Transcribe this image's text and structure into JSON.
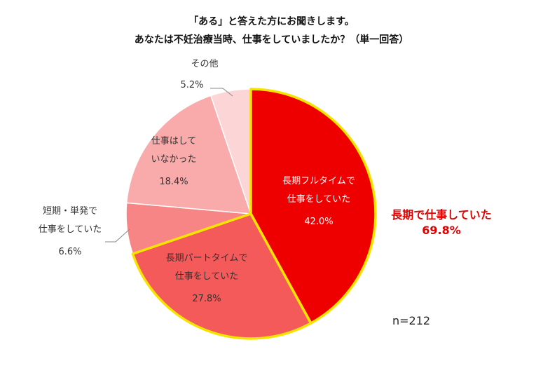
{
  "title_lines": [
    "「ある」と答えた方にお聞きします。",
    "あなたは不妊治療当時、仕事をしていましたか？（単一回答）"
  ],
  "chart_data": {
    "type": "pie",
    "start_angle_deg": 0,
    "direction": "clockwise",
    "slices": [
      {
        "label_lines": [
          "長期フルタイムで",
          "仕事をしていた"
        ],
        "value": 42.0,
        "value_label": "42.0%",
        "color": "#ee0000",
        "text_color": "#ffffff",
        "highlight": true
      },
      {
        "label_lines": [
          "長期パートタイムで",
          "仕事をしていた"
        ],
        "value": 27.8,
        "value_label": "27.8%",
        "color": "#f55a5a",
        "text_color": "#333333",
        "highlight": true
      },
      {
        "label_lines": [
          "短期・単発で",
          "仕事をしていた"
        ],
        "value": 6.6,
        "value_label": "6.6%",
        "color": "#f78585",
        "text_color": "#333333",
        "highlight": false
      },
      {
        "label_lines": [
          "仕事はして",
          "いなかった"
        ],
        "value": 18.4,
        "value_label": "18.4%",
        "color": "#f9aaaa",
        "text_color": "#333333",
        "highlight": false
      },
      {
        "label_lines": [
          "その他"
        ],
        "value": 5.2,
        "value_label": "5.2%",
        "color": "#fcd6d6",
        "text_color": "#333333",
        "highlight": false
      }
    ],
    "highlight_outline_color": "#f5e400",
    "callout_lines": [
      "長期で仕事していた",
      "69.8%"
    ],
    "callout_color": "#e00000",
    "sample_size_label": "n=212"
  }
}
